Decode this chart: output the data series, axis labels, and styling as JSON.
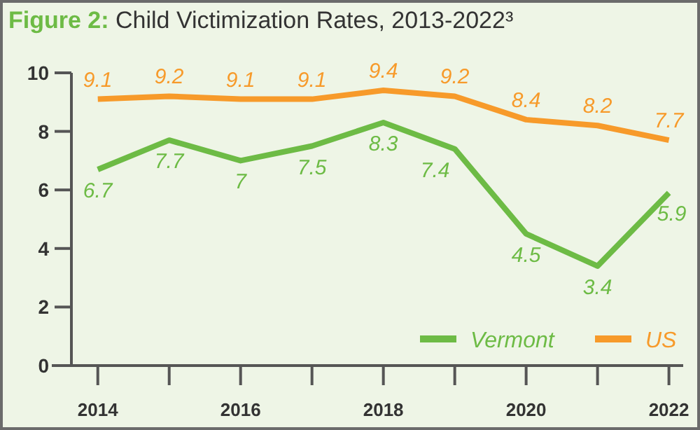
{
  "chart_data": {
    "type": "line",
    "title": "Figure 2: Child Victimization Rates, 2013-2022³",
    "x": [
      2014,
      2015,
      2016,
      2017,
      2018,
      2019,
      2020,
      2021,
      2022
    ],
    "series": [
      {
        "name": "Vermont",
        "color": "#6dbb45",
        "values": [
          6.7,
          7.7,
          7,
          7.5,
          8.3,
          7.4,
          4.5,
          3.4,
          5.9
        ]
      },
      {
        "name": "US",
        "color": "#f79a2a",
        "values": [
          9.1,
          9.2,
          9.1,
          9.1,
          9.4,
          9.2,
          8.4,
          8.2,
          7.7
        ]
      }
    ],
    "xlim": [
      2013.63,
      2022.2
    ],
    "xticks": [
      2014,
      {
        "value": 2015,
        "label": null
      },
      2016,
      {
        "value": 2017,
        "label": null
      },
      2018,
      {
        "value": 2019,
        "label": null
      },
      2020,
      {
        "value": 2021,
        "label": null
      },
      2022
    ],
    "ylim": [
      0,
      10
    ],
    "yticks": [
      0,
      2,
      4,
      6,
      8,
      10
    ],
    "data_labels": true,
    "legend": "bottom right",
    "grid": false,
    "marker": "none",
    "line_style": "solid"
  }
}
